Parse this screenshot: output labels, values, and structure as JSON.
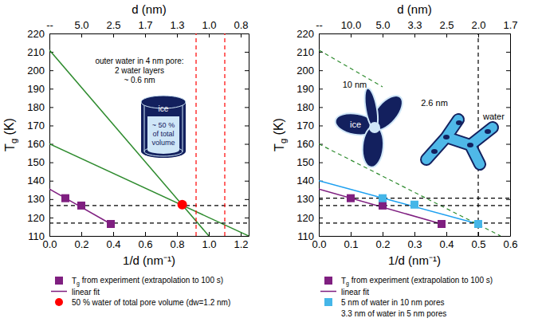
{
  "chart_data": [
    {
      "type": "scatter",
      "xlabel": "1/d (nm⁻¹)",
      "ylabel": "Tg (K)",
      "x2label": "d (nm)",
      "xlim": [
        0,
        1.25
      ],
      "ylim": [
        110,
        220
      ],
      "xticks": [
        {
          "value": 0,
          "label": "0.0"
        },
        0.2,
        0.4,
        0.6,
        0.8,
        {
          "value": 1,
          "label": "1.0"
        },
        1.2
      ],
      "x2ticks": [
        {
          "value": 0,
          "label": "--"
        },
        {
          "value": 0.2,
          "label": "5.0"
        },
        {
          "value": 0.4,
          "label": "2.5"
        },
        {
          "value": 0.6,
          "label": "1.7"
        },
        {
          "value": 0.8,
          "label": "1.3"
        },
        {
          "value": 1,
          "label": "1.0"
        },
        {
          "value": 1.2,
          "label": "0.8"
        }
      ],
      "yticks": [
        110,
        120,
        130,
        140,
        150,
        160,
        170,
        180,
        190,
        200,
        210,
        220
      ],
      "series": [
        {
          "name": "Tg from experiment (extrapolation to 100 s)",
          "type": "scatter",
          "marker": "square",
          "color": "#7f1f80",
          "x": [
            0.1,
            0.2,
            0.385
          ],
          "values": [
            130.5,
            126.5,
            116.5
          ]
        },
        {
          "name": "linear fit",
          "type": "line",
          "line_style": "solid",
          "color": "#7f1f80",
          "x": [
            0,
            0.385
          ],
          "values": [
            135.5,
            116.5
          ]
        },
        {
          "name": "50 % water of total pore volume  (dw=1.2 nm)",
          "type": "scatter",
          "marker": "circle",
          "color": "#ff0000",
          "x": [
            0.833
          ],
          "values": [
            127
          ]
        },
        {
          "type": "line",
          "line_style": "solid",
          "color": "#2e8b2e",
          "x": [
            0,
            1
          ],
          "values": [
            211,
            110
          ]
        },
        {
          "type": "line",
          "line_style": "solid",
          "color": "#2e8b2e",
          "x": [
            0,
            1.25
          ],
          "values": [
            160,
            110
          ]
        },
        {
          "type": "line",
          "line_style": "dashed",
          "color": "#000000",
          "x": [
            0,
            1.25
          ],
          "values": [
            126.5,
            126.5
          ]
        },
        {
          "type": "line",
          "line_style": "dashed",
          "color": "#000000",
          "x": [
            0,
            1.25
          ],
          "values": [
            117,
            117
          ]
        },
        {
          "type": "line",
          "line_style": "dashed",
          "color": "#ff0000",
          "x": [
            0.92,
            0.92
          ],
          "values": [
            110,
            220
          ]
        },
        {
          "type": "line",
          "line_style": "dashed",
          "color": "#ff0000",
          "x": [
            1.1,
            1.1
          ],
          "values": [
            110,
            220
          ]
        }
      ],
      "annotations": [
        "outer water in 4 nm pore:",
        "2 water layers",
        "~ 0.6 nm",
        "ice",
        "~ 50 %",
        "of total",
        "volume"
      ],
      "legend": "bottom"
    },
    {
      "type": "scatter",
      "xlabel": "1/d (nm⁻¹)",
      "ylabel": "Tg (K)",
      "x2label": "d (nm)",
      "xlim": [
        0,
        0.6
      ],
      "ylim": [
        110,
        220
      ],
      "xticks": [
        {
          "value": 0,
          "label": "0.0"
        },
        0.1,
        0.2,
        0.3,
        0.4,
        0.5,
        0.6
      ],
      "x2ticks": [
        {
          "value": 0,
          "label": "--"
        },
        {
          "value": 0.1,
          "label": "10.0"
        },
        {
          "value": 0.2,
          "label": "5.0"
        },
        {
          "value": 0.3,
          "label": "3.3"
        },
        {
          "value": 0.4,
          "label": "2.5"
        },
        {
          "value": 0.5,
          "label": "2.0"
        },
        {
          "value": 0.6,
          "label": "1.7"
        }
      ],
      "yticks": [
        110,
        120,
        130,
        140,
        150,
        160,
        170,
        180,
        190,
        200,
        210,
        220
      ],
      "series": [
        {
          "name": "Tg from experiment (extrapolation to 100 s)",
          "type": "scatter",
          "marker": "square",
          "color": "#7f1f80",
          "x": [
            0.1,
            0.2,
            0.385
          ],
          "values": [
            130.5,
            126.5,
            116.5
          ]
        },
        {
          "name": "linear fit",
          "type": "line",
          "line_style": "solid",
          "color": "#7f1f80",
          "x": [
            0,
            0.385
          ],
          "values": [
            135.5,
            116.5
          ]
        },
        {
          "name": "5 nm of water in 10 nm pores",
          "type": "scatter",
          "marker": "square",
          "color": "#45b6e8",
          "x": [
            0.2,
            0.3,
            0.5
          ],
          "values": [
            130.5,
            127,
            116.5
          ]
        },
        {
          "type": "line",
          "line_style": "solid",
          "color": "#1ea0f0",
          "x": [
            0,
            0.5
          ],
          "values": [
            140,
            116.5
          ]
        },
        {
          "type": "line",
          "line_style": "dashed",
          "color": "#2e8b2e",
          "x": [
            0,
            0.2
          ],
          "values": [
            211,
            191
          ]
        },
        {
          "type": "line",
          "line_style": "dashed",
          "color": "#2e8b2e",
          "x": [
            0,
            0.57
          ],
          "values": [
            160,
            110
          ]
        },
        {
          "type": "line",
          "line_style": "dashed",
          "color": "#000000",
          "x": [
            0,
            0.6
          ],
          "values": [
            130.5,
            130.5
          ]
        },
        {
          "type": "line",
          "line_style": "dashed",
          "color": "#000000",
          "x": [
            0,
            0.6
          ],
          "values": [
            126.5,
            126.5
          ]
        },
        {
          "type": "line",
          "line_style": "dashed",
          "color": "#000000",
          "x": [
            0,
            0.6
          ],
          "values": [
            117,
            117
          ]
        },
        {
          "type": "line",
          "line_style": "dashed",
          "color": "#000000",
          "x": [
            0.5,
            0.5
          ],
          "values": [
            110,
            220
          ]
        }
      ],
      "annotations": [
        "10 nm",
        "2.6 nm",
        "ice",
        "water",
        "3.3 nm of water in 5 nm pores"
      ],
      "legend": "bottom"
    }
  ]
}
